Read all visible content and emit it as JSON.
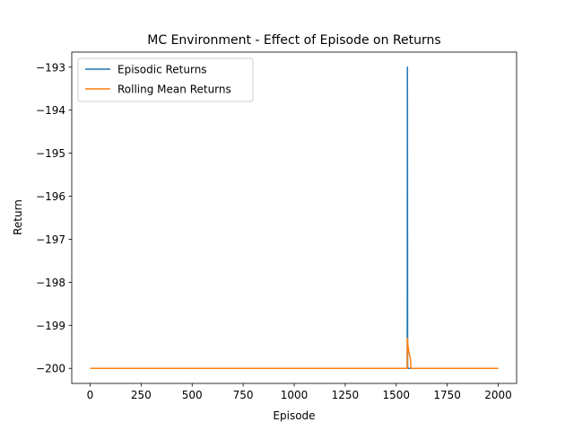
{
  "chart_data": {
    "type": "line",
    "title": "MC Environment - Effect of Episode on Returns",
    "xlabel": "Episode",
    "ylabel": "Return",
    "xlim": [
      -90,
      2090
    ],
    "ylim": [
      -200.35,
      -192.65
    ],
    "xticks": [
      0,
      250,
      500,
      750,
      1000,
      1250,
      1500,
      1750,
      2000
    ],
    "yticks": [
      -193,
      -194,
      -195,
      -196,
      -197,
      -198,
      -199,
      -200
    ],
    "xtick_labels": [
      "0",
      "250",
      "500",
      "750",
      "1000",
      "1250",
      "1500",
      "1750",
      "2000"
    ],
    "ytick_labels": [
      "−193",
      "−194",
      "−195",
      "−196",
      "−197",
      "−198",
      "−199",
      "−200"
    ],
    "grid": false,
    "legend_position": "top-left",
    "series": [
      {
        "name": "Episodic Returns",
        "color": "#1f77b4",
        "points": [
          [
            0,
            -200
          ],
          [
            1554,
            -200
          ],
          [
            1555,
            -193
          ],
          [
            1556,
            -200
          ],
          [
            2000,
            -200
          ]
        ]
      },
      {
        "name": "Rolling Mean Returns",
        "color": "#ff7f0e",
        "points": [
          [
            0,
            -200
          ],
          [
            1554,
            -200
          ],
          [
            1555,
            -199.3
          ],
          [
            1557,
            -199.45
          ],
          [
            1560,
            -199.55
          ],
          [
            1563,
            -199.65
          ],
          [
            1566,
            -199.7
          ],
          [
            1568,
            -199.75
          ],
          [
            1570,
            -199.78
          ],
          [
            1572,
            -200
          ],
          [
            2000,
            -200
          ]
        ]
      }
    ]
  }
}
